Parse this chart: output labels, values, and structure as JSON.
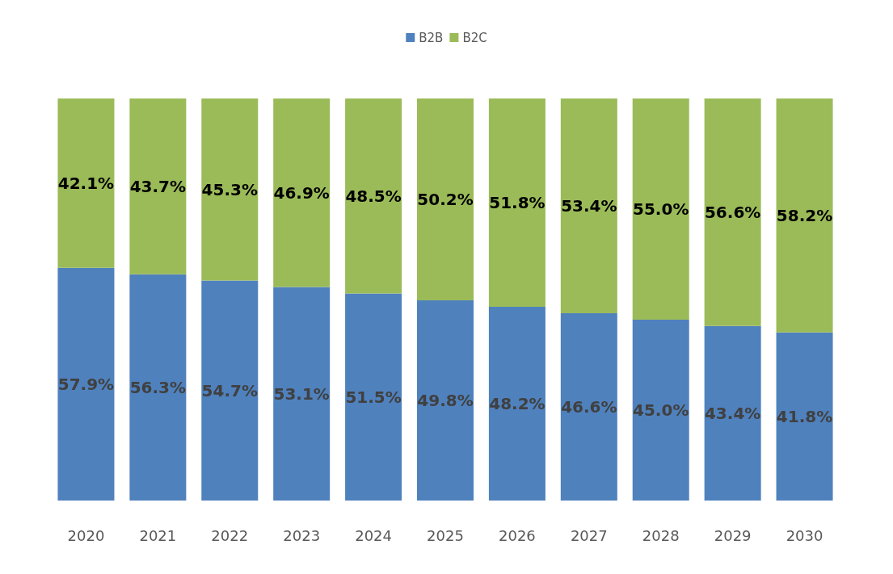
{
  "chart_data": {
    "type": "bar",
    "stacked": true,
    "legend": "top",
    "grid": false,
    "categories": [
      "2020",
      "2021",
      "2022",
      "2023",
      "2024",
      "2025",
      "2026",
      "2027",
      "2028",
      "2029",
      "2030"
    ],
    "series": [
      {
        "name": "B2B",
        "color": "#4f81bd",
        "values": [
          57.9,
          56.3,
          54.7,
          53.1,
          51.5,
          49.8,
          48.2,
          46.6,
          45.0,
          43.4,
          41.8
        ],
        "value_labels": [
          "57.9%",
          "56.3%",
          "54.7%",
          "53.1%",
          "51.5%",
          "49.8%",
          "48.2%",
          "46.6%",
          "45.0%",
          "43.4%",
          "41.8%"
        ]
      },
      {
        "name": "B2C",
        "color": "#9bbb59",
        "values": [
          42.1,
          43.7,
          45.3,
          46.9,
          48.5,
          50.2,
          51.8,
          53.4,
          55.0,
          56.6,
          58.2
        ],
        "value_labels": [
          "42.1%",
          "43.7%",
          "45.3%",
          "46.9%",
          "48.5%",
          "50.2%",
          "51.8%",
          "53.4%",
          "55.0%",
          "56.6%",
          "58.2%"
        ]
      }
    ]
  }
}
